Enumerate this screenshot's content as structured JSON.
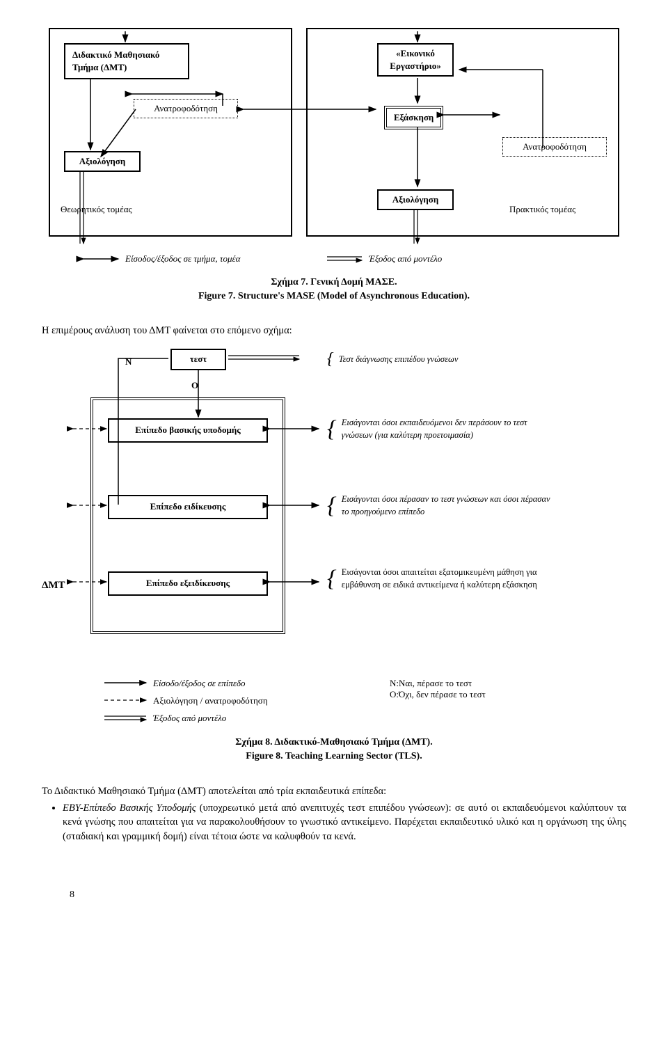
{
  "fig7": {
    "left_panel": {
      "box_title": "Διδακτικό Μαθησιακό\nΤμήμα (ΔΜΤ)",
      "feedback": "Ανατροφοδότηση",
      "eval": "Αξιολόγηση",
      "sector": "Θεωρητικός τομέας"
    },
    "right_panel": {
      "box_title": "«Εικονικό\nΕργαστήριο»",
      "practice": "Εξάσκηση",
      "feedback": "Ανατροφοδότηση",
      "eval": "Αξιολόγηση",
      "sector": "Πρακτικός τομέας"
    },
    "legend_in": "Είσοδος/έξοδος σε τμήμα, τομέα",
    "legend_out": "Έξοδος από μοντέλο",
    "caption_gr": "Σχήμα 7. Γενική Δομή ΜΑΣΕ.",
    "caption_en": "Figure 7. Structure's MASE (Model of Asynchronous Education)."
  },
  "mid_text": "Η επιμέρους ανάλυση του ΔΜΤ φαίνεται στο επόμενο σχήμα:",
  "fig8": {
    "n_label": "Ν",
    "o_label": "Ο",
    "test_box": "τεστ",
    "level1": "Επίπεδο βασικής υποδομής",
    "level2": "Επίπεδο ειδίκευσης",
    "level3": "Επίπεδο εξειδίκευσης",
    "dmt_label": "ΔΜΤ",
    "note_test": "Τεστ διάγνωσης επιπέδου γνώσεων",
    "note1": "Εισάγονται όσοι εκπαιδευόμενοι δεν περάσουν το τεστ γνώσεων (για καλύτερη προετοιμασία)",
    "note2": "Εισάγονται όσοι πέρασαν το τεστ γνώσεων και όσοι πέρασαν το προηγούμενο επίπεδο",
    "note3": "Εισάγονται όσοι απαιτείται εξατομικευμένη μάθηση για εμβάθυνση σε ειδικά αντικείμενα ή καλύτερη εξάσκηση",
    "legend_io": "Είσοδο/έξοδος σε  επίπεδο",
    "legend_eval": "Αξιολόγηση / ανατροφοδότηση",
    "legend_exit": "Έξοδος από μοντέλο",
    "legend_n": "Ν:Ναι, πέρασε το τεστ",
    "legend_o": "Ο:Όχι, δεν πέρασε το τεστ",
    "caption_gr": "Σχήμα 8. Διδακτικό-Μαθησιακό Τμήμα (ΔΜΤ).",
    "caption_en": "Figure 8. Teaching Learning Sector (TLS)."
  },
  "body2_intro": "Το Διδακτικό Μαθησιακό Τμήμα (ΔΜΤ) αποτελείται από τρία εκπαιδευτικά επίπεδα:",
  "bullet1": "ΕΒΥ-Επίπεδο Βασικής Υποδομής (υποχρεωτικό μετά από ανεπιτυχές τεστ επιπέδου γνώσεων): σε αυτό οι εκπαιδευόμενοι καλύπτουν τα κενά γνώσης που απαιτείται για να παρακολουθήσουν το γνωστικό αντικείμενο. Παρέχεται εκπαιδευτικό υλικό και η οργάνωση της ύλης (σταδιακή και γραμμική δομή) είναι τέτοια ώστε να καλυφθούν τα κενά.",
  "page": "8",
  "style": {
    "text_color": "#000000",
    "bg_color": "#ffffff",
    "border_color": "#000000",
    "italic": true,
    "font_body": 14.5,
    "font_box": 13,
    "font_note": 12.5
  }
}
